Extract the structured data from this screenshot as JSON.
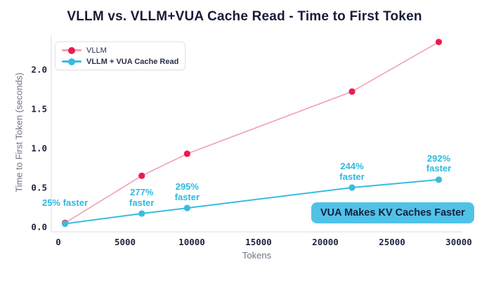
{
  "chart_data": {
    "type": "line",
    "title": "VLLM vs. VLLM+VUA Cache Read - Time to First Token",
    "xlabel": "Tokens",
    "ylabel": "Time to First Token (seconds)",
    "x_ticks": [
      0,
      5000,
      10000,
      15000,
      20000,
      25000,
      30000
    ],
    "y_ticks": [
      "0.0",
      "0.5",
      "1.0",
      "1.5",
      "2.0"
    ],
    "xlim": [
      0,
      30000
    ],
    "ylim": [
      0,
      2.4
    ],
    "grid": false,
    "legend_position": "top-left",
    "x": [
      500,
      6250,
      9650,
      22000,
      28500
    ],
    "series": [
      {
        "name": "VLLM",
        "color": "#ed1a4f",
        "line_color": "#f29fb4",
        "values": [
          0.05,
          0.65,
          0.93,
          1.72,
          2.35
        ]
      },
      {
        "name": "VLLM + VUA Cache Read",
        "color": "#38bcdf",
        "line_color": "#38bcdf",
        "values": [
          0.04,
          0.17,
          0.24,
          0.5,
          0.6
        ]
      }
    ],
    "annotations": [
      {
        "text": "25% faster",
        "x": 500,
        "y": 0.04
      },
      {
        "text": "277% faster",
        "x": 6250,
        "y": 0.17
      },
      {
        "text": "295% faster",
        "x": 9650,
        "y": 0.24
      },
      {
        "text": "244% faster",
        "x": 22000,
        "y": 0.5
      },
      {
        "text": "292% faster",
        "x": 28500,
        "y": 0.6
      }
    ],
    "callout": "VUA Makes KV Caches Faster"
  },
  "colors": {
    "title_text": "#181c39",
    "tick_text": "#20243f",
    "axis_label_text": "#6e7385",
    "spine": "#e6e7eb",
    "vllm_red": "#ed1a4f",
    "vua_cyan": "#38bcdf",
    "annotation_cyan": "#2eb9df",
    "badge_background": "#50c2e8",
    "badge_text": "#16203e"
  }
}
